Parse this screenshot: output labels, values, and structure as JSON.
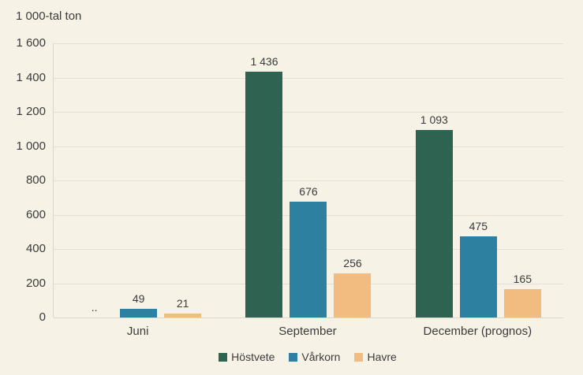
{
  "chart_data": {
    "type": "bar",
    "title": "1 000-tal ton",
    "categories": [
      "Juni",
      "September",
      "December (prognos)"
    ],
    "series": [
      {
        "name": "Höstvete",
        "color": "#2d6350",
        "values": [
          null,
          1436,
          1093
        ],
        "value_labels": [
          "..",
          "1 436",
          "1 093"
        ]
      },
      {
        "name": "Vårkorn",
        "color": "#2e80a0",
        "values": [
          49,
          676,
          475
        ],
        "value_labels": [
          "49",
          "676",
          "475"
        ]
      },
      {
        "name": "Havre",
        "color": "#f2bc80",
        "values": [
          21,
          256,
          165
        ],
        "value_labels": [
          "21",
          "256",
          "165"
        ]
      }
    ],
    "ylim": [
      0,
      1600
    ],
    "ytick_values": [
      1600,
      1400,
      1200,
      1000,
      800,
      600,
      400,
      200,
      0
    ],
    "ytick_labels": [
      "1 600",
      "1 400",
      "1 200",
      "1 000",
      "800",
      "600",
      "400",
      "200",
      "0"
    ],
    "grid": true,
    "legend_position": "bottom",
    "missing_marker": ".."
  },
  "colors": {
    "background": "#f6f2e6",
    "gridline": "#e3e0d8",
    "axis_line": "#d9d6cd",
    "text": "#3b3b3b"
  }
}
